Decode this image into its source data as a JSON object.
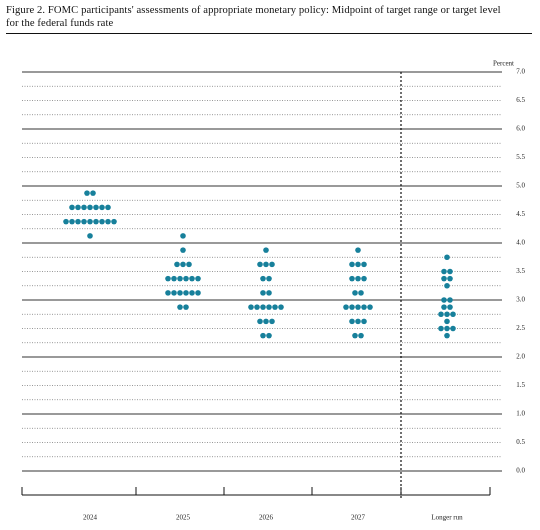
{
  "chart_data": {
    "type": "dot_plot",
    "title": "Figure 2.  FOMC participants' assessments of appropriate monetary policy:  Midpoint of target range or target level for the federal funds rate",
    "y_label": "Percent",
    "color": "#17809b",
    "categories": [
      "2024",
      "2025",
      "2026",
      "2027",
      "Longer run"
    ],
    "values": [
      [
        4.875,
        4.875,
        4.625,
        4.625,
        4.625,
        4.625,
        4.625,
        4.625,
        4.625,
        4.375,
        4.375,
        4.375,
        4.375,
        4.375,
        4.375,
        4.375,
        4.375,
        4.375,
        4.125
      ],
      [
        4.125,
        3.875,
        3.625,
        3.625,
        3.625,
        3.375,
        3.375,
        3.375,
        3.375,
        3.375,
        3.375,
        3.125,
        3.125,
        3.125,
        3.125,
        3.125,
        3.125,
        2.875,
        2.875
      ],
      [
        3.875,
        3.625,
        3.625,
        3.625,
        3.375,
        3.375,
        3.125,
        3.125,
        2.875,
        2.875,
        2.875,
        2.875,
        2.875,
        2.875,
        2.625,
        2.625,
        2.625,
        2.375,
        2.375
      ],
      [
        3.875,
        3.625,
        3.625,
        3.625,
        3.375,
        3.375,
        3.375,
        3.125,
        3.125,
        2.875,
        2.875,
        2.875,
        2.875,
        2.875,
        2.625,
        2.625,
        2.625,
        2.375,
        2.375
      ],
      [
        3.75,
        3.5,
        3.5,
        3.375,
        3.375,
        3.25,
        3.0,
        3.0,
        2.875,
        2.875,
        2.75,
        2.75,
        2.75,
        2.625,
        2.5,
        2.5,
        2.5,
        2.375
      ]
    ],
    "ylim": [
      0,
      7
    ],
    "yticks": [
      {
        "value": 0,
        "label": "0.0"
      },
      {
        "value": 0.5,
        "label": "0.5"
      },
      {
        "value": 1,
        "label": "1.0"
      },
      {
        "value": 1.5,
        "label": "1.5"
      },
      {
        "value": 2,
        "label": "2.0"
      },
      {
        "value": 2.5,
        "label": "2.5"
      },
      {
        "value": 3,
        "label": "3.0"
      },
      {
        "value": 3.5,
        "label": "3.5"
      },
      {
        "value": 4,
        "label": "4.0"
      },
      {
        "value": 4.5,
        "label": "4.5"
      },
      {
        "value": 5,
        "label": "5.0"
      },
      {
        "value": 5.5,
        "label": "5.5"
      },
      {
        "value": 6,
        "label": "6.0"
      },
      {
        "value": 6.5,
        "label": "6.5"
      },
      {
        "value": 7,
        "label": "7.0"
      }
    ],
    "grid": true
  }
}
